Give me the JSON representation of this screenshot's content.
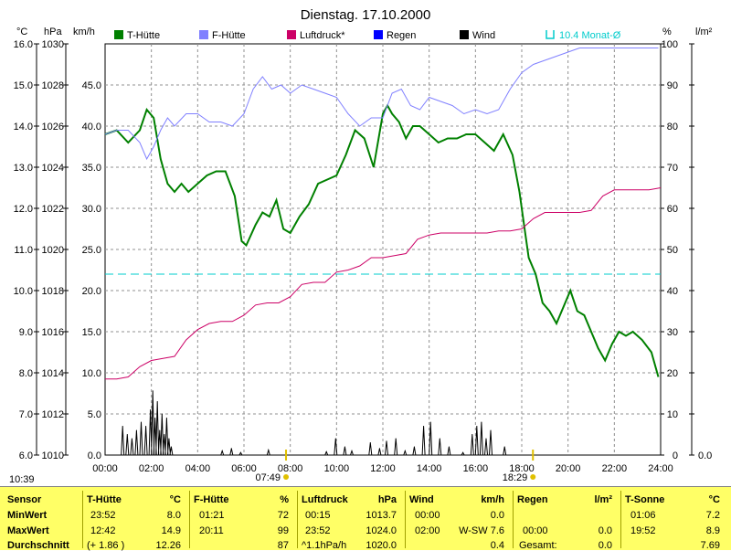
{
  "chart_data": {
    "type": "line",
    "title": "Dienstag. 17.10.2000",
    "x_ticks": [
      "00:00",
      "02:00",
      "04:00",
      "06:00",
      "08:00",
      "10:00",
      "12:00",
      "14:00",
      "16:00",
      "18:00",
      "20:00",
      "22:00",
      "24:00"
    ],
    "axes": {
      "celsius": {
        "unit": "°C",
        "range": [
          6.0,
          16.0
        ],
        "ticks": [
          "16.0",
          "15.0",
          "14.0",
          "13.0",
          "12.0",
          "11.0",
          "10.0",
          "9.0",
          "8.0",
          "7.0",
          "6.0"
        ]
      },
      "hpa": {
        "unit": "hPa",
        "range": [
          1010,
          1030
        ],
        "ticks": [
          "1030",
          "1028",
          "1026",
          "1024",
          "1022",
          "1020",
          "1018",
          "1016",
          "1014",
          "1012",
          "1010"
        ]
      },
      "kmh": {
        "unit": "km/h",
        "range": [
          0,
          50
        ],
        "ticks": [
          "45.0",
          "40.0",
          "35.0",
          "30.0",
          "25.0",
          "20.0",
          "15.0",
          "10.0",
          "5.0",
          "0.0"
        ]
      },
      "percent": {
        "unit": "%",
        "range": [
          0,
          100
        ],
        "ticks": [
          "100",
          "90",
          "80",
          "70",
          "60",
          "50",
          "40",
          "30",
          "20",
          "10",
          "0"
        ]
      },
      "rain": {
        "unit": "l/m²",
        "range": [
          0,
          100
        ],
        "ticks": [
          "0.0"
        ]
      }
    },
    "legend": [
      {
        "name": "T-Hütte",
        "color": "#008000"
      },
      {
        "name": "F-Hütte",
        "color": "#8080ff"
      },
      {
        "name": "Luftdruck*",
        "color": "#cc0066"
      },
      {
        "name": "Regen",
        "color": "#0000ff"
      },
      {
        "name": "Wind",
        "color": "#000000"
      },
      {
        "name": "10.4 Monat-Ø",
        "color": "#00cccc"
      }
    ],
    "monthly_avg_celsius": 10.4,
    "sunrise": "07:49",
    "sunset": "18:29",
    "time_label": "10:39",
    "series": [
      {
        "name": "T-Hütte",
        "axis": "celsius",
        "color": "#008000",
        "x": [
          0,
          0.5,
          1,
          1.5,
          1.8,
          2.1,
          2.4,
          2.7,
          3.0,
          3.3,
          3.6,
          4.0,
          4.4,
          4.8,
          5.2,
          5.6,
          5.9,
          6.1,
          6.5,
          6.8,
          7.1,
          7.4,
          7.7,
          8.0,
          8.4,
          8.8,
          9.2,
          9.6,
          10.0,
          10.4,
          10.8,
          11.2,
          11.6,
          12.0,
          12.2,
          12.4,
          12.7,
          13.0,
          13.3,
          13.6,
          14.0,
          14.4,
          14.8,
          15.2,
          15.6,
          16.0,
          16.4,
          16.8,
          17.2,
          17.6,
          17.9,
          18.1,
          18.3,
          18.6,
          18.9,
          19.2,
          19.5,
          19.8,
          20.1,
          20.4,
          20.7,
          21.0,
          21.3,
          21.6,
          21.9,
          22.2,
          22.5,
          22.8,
          23.2,
          23.6,
          23.9
        ],
        "y": [
          13.8,
          13.9,
          13.6,
          13.9,
          14.4,
          14.2,
          13.2,
          12.6,
          12.4,
          12.6,
          12.4,
          12.6,
          12.8,
          12.9,
          12.9,
          12.3,
          11.2,
          11.1,
          11.6,
          11.9,
          11.8,
          12.2,
          11.5,
          11.4,
          11.8,
          12.1,
          12.6,
          12.7,
          12.8,
          13.3,
          13.9,
          13.7,
          13.0,
          14.3,
          14.5,
          14.3,
          14.1,
          13.7,
          14.0,
          14.0,
          13.8,
          13.6,
          13.7,
          13.7,
          13.8,
          13.8,
          13.6,
          13.4,
          13.8,
          13.3,
          12.4,
          11.6,
          10.8,
          10.4,
          9.7,
          9.5,
          9.2,
          9.6,
          10.0,
          9.5,
          9.4,
          9.0,
          8.6,
          8.3,
          8.7,
          9.0,
          8.9,
          9.0,
          8.8,
          8.5,
          7.9
        ]
      },
      {
        "name": "F-Hütte",
        "axis": "percent",
        "color": "#8080ff",
        "x": [
          0,
          0.5,
          1,
          1.5,
          1.8,
          2.1,
          2.4,
          2.7,
          3.0,
          3.5,
          4.0,
          4.5,
          5.0,
          5.5,
          6.0,
          6.4,
          6.8,
          7.2,
          7.6,
          8.0,
          8.5,
          9.0,
          9.5,
          10.0,
          10.5,
          11.0,
          11.5,
          12.0,
          12.4,
          12.8,
          13.2,
          13.6,
          14.0,
          14.5,
          15.0,
          15.5,
          16.0,
          16.5,
          17.0,
          17.5,
          18.0,
          18.5,
          19.0,
          19.5,
          20.0,
          20.5,
          21.0,
          22.0,
          23.0,
          23.9
        ],
        "y": [
          78,
          79,
          79,
          76,
          72,
          75,
          79,
          82,
          80,
          83,
          83,
          81,
          81,
          80,
          83,
          89,
          92,
          89,
          90,
          88,
          90,
          89,
          88,
          87,
          83,
          80,
          82,
          82,
          88,
          89,
          85,
          84,
          87,
          86,
          85,
          83,
          84,
          83,
          84,
          89,
          93,
          95,
          96,
          97,
          98,
          99,
          99,
          99,
          99,
          99
        ]
      },
      {
        "name": "Luftdruck*",
        "axis": "hpa",
        "color": "#cc0066",
        "x": [
          0,
          0.5,
          1,
          1.5,
          2.0,
          2.5,
          3.0,
          3.5,
          4.0,
          4.5,
          5.0,
          5.5,
          6.0,
          6.5,
          7.0,
          7.5,
          8.0,
          8.5,
          9.0,
          9.5,
          10.0,
          10.5,
          11.0,
          11.5,
          12.0,
          12.5,
          13.0,
          13.5,
          14.0,
          14.5,
          15.0,
          15.5,
          16.0,
          16.5,
          17.0,
          17.5,
          18.0,
          18.5,
          19.0,
          19.5,
          20.0,
          20.5,
          21.0,
          21.5,
          22.0,
          22.5,
          23.0,
          23.5,
          24.0
        ],
        "y": [
          1013.7,
          1013.7,
          1013.8,
          1014.3,
          1014.6,
          1014.7,
          1014.8,
          1015.6,
          1016.1,
          1016.4,
          1016.5,
          1016.5,
          1016.8,
          1017.3,
          1017.4,
          1017.4,
          1017.7,
          1018.3,
          1018.4,
          1018.4,
          1018.9,
          1019.0,
          1019.2,
          1019.6,
          1019.6,
          1019.7,
          1019.8,
          1020.5,
          1020.7,
          1020.8,
          1020.8,
          1020.8,
          1020.8,
          1020.8,
          1020.9,
          1020.9,
          1021.0,
          1021.5,
          1021.8,
          1021.8,
          1021.8,
          1021.8,
          1021.9,
          1022.6,
          1022.9,
          1022.9,
          1022.9,
          1022.9,
          1023.0
        ]
      },
      {
        "name": "Wind",
        "axis": "kmh",
        "color": "#000000",
        "x": [
          0.7,
          0.9,
          1.1,
          1.3,
          1.5,
          1.7,
          1.9,
          2.0,
          2.1,
          2.2,
          2.3,
          2.4,
          2.5,
          2.6,
          2.7,
          2.8,
          5.0,
          5.4,
          5.8,
          7.0,
          9.5,
          9.9,
          10.3,
          10.6,
          11.4,
          11.8,
          12.1,
          12.5,
          12.9,
          13.3,
          13.7,
          14.0,
          14.4,
          14.8,
          15.4,
          15.8,
          16.0,
          16.2,
          16.4,
          16.6,
          17.2
        ],
        "y": [
          3.5,
          2.5,
          2.0,
          3.0,
          4.0,
          3.5,
          5.5,
          7.8,
          4.5,
          6.5,
          3.0,
          5.0,
          2.5,
          4.5,
          2.0,
          1.0,
          0.5,
          0.8,
          0.3,
          0.6,
          0.4,
          2.0,
          1.0,
          0.5,
          1.5,
          0.8,
          1.7,
          2.0,
          0.5,
          1.0,
          3.5,
          4.0,
          2.0,
          1.0,
          0.3,
          2.5,
          3.5,
          4.0,
          2.0,
          3.0,
          1.0
        ]
      }
    ]
  },
  "stats": {
    "headers": {
      "sensor": "Sensor",
      "t_huette": "T-Hütte",
      "t_huette_unit": "°C",
      "f_huette": "F-Hütte",
      "f_huette_unit": "%",
      "luftdruck": "Luftdruck",
      "luftdruck_unit": "hPa",
      "wind": "Wind",
      "wind_unit": "km/h",
      "regen": "Regen",
      "regen_unit": "l/m²",
      "t_sonne": "T-Sonne",
      "t_sonne_unit": "°C"
    },
    "rows": [
      {
        "label": "MinWert",
        "t_time": "23:52",
        "t_val": "8.0",
        "f_time": "01:21",
        "f_val": "72",
        "p_time": "00:15",
        "p_val": "1013.7",
        "w_time": "00:00",
        "w_val": "0.0",
        "r_time": "",
        "r_val": "",
        "s_time": "01:06",
        "s_val": "7.2"
      },
      {
        "label": "MaxWert",
        "t_time": "12:42",
        "t_val": "14.9",
        "f_time": "20:11",
        "f_val": "99",
        "p_time": "23:52",
        "p_val": "1024.0",
        "w_time": "02:00",
        "w_val": "W-SW 7.6",
        "r_time": "00:00",
        "r_val": "0.0",
        "s_time": "19:52",
        "s_val": "8.9"
      },
      {
        "label": "Durchschnitt",
        "t_time": "(+ 1.86 )",
        "t_val": "12.26",
        "f_time": "",
        "f_val": "87",
        "p_time": "^1.1hPa/h",
        "p_val": "1020.0",
        "w_time": "",
        "w_val": "0.4",
        "r_time": "Gesamt:",
        "r_val": "0.0",
        "s_time": "",
        "s_val": "7.69"
      }
    ]
  }
}
